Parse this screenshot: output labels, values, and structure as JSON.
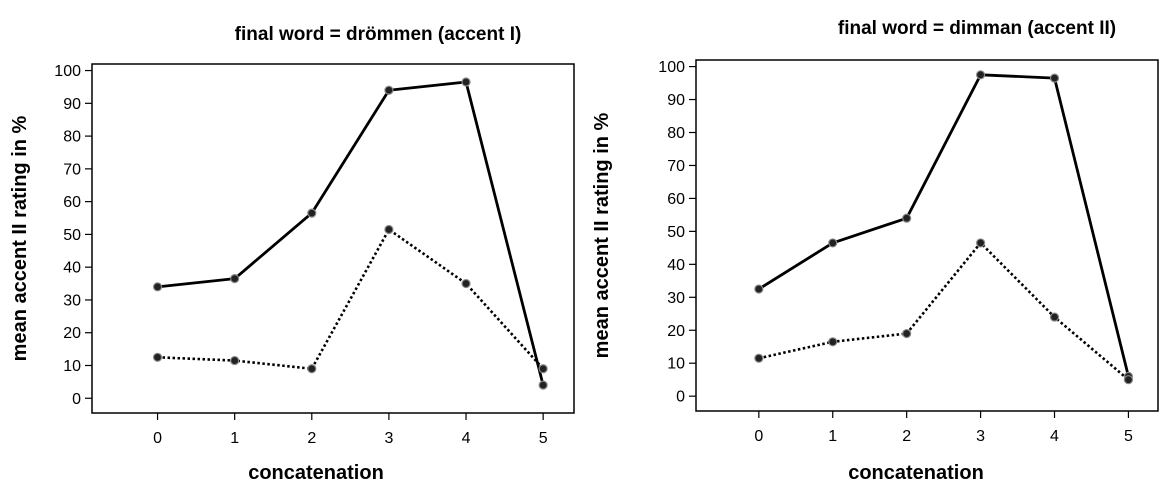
{
  "chart_data": [
    {
      "type": "line",
      "title": "final word = drömmen (accent I)",
      "xlabel": "concatenation",
      "ylabel": "mean accent II rating in %",
      "x": [
        0,
        1,
        2,
        3,
        4,
        5
      ],
      "xticks": [
        "0",
        "1",
        "2",
        "3",
        "4",
        "5"
      ],
      "yticks": [
        "0",
        "10",
        "20",
        "30",
        "40",
        "50",
        "60",
        "70",
        "80",
        "90",
        "100"
      ],
      "xlim": [
        -0.85,
        5.4
      ],
      "ylim": [
        -4.5,
        102
      ],
      "grid": false,
      "series": [
        {
          "style": "solid",
          "values": [
            34,
            36.5,
            56.5,
            94,
            96.5,
            4
          ]
        },
        {
          "style": "dotted",
          "values": [
            12.5,
            11.5,
            9,
            51.5,
            35,
            9
          ]
        }
      ]
    },
    {
      "type": "line",
      "title": "final word = dimman (accent II)",
      "xlabel": "concatenation",
      "ylabel": "mean accent II rating in %",
      "x": [
        0,
        1,
        2,
        3,
        4,
        5
      ],
      "xticks": [
        "0",
        "1",
        "2",
        "3",
        "4",
        "5"
      ],
      "yticks": [
        "0",
        "10",
        "20",
        "30",
        "40",
        "50",
        "60",
        "70",
        "80",
        "90",
        "100"
      ],
      "xlim": [
        -0.85,
        5.4
      ],
      "ylim": [
        -4.5,
        102
      ],
      "grid": false,
      "series": [
        {
          "style": "solid",
          "values": [
            32.5,
            46.5,
            54,
            97.5,
            96.5,
            6
          ]
        },
        {
          "style": "dotted",
          "values": [
            11.5,
            16.5,
            19,
            46.5,
            24,
            5
          ]
        }
      ]
    }
  ],
  "colors": {
    "line": "#000000",
    "marker_fill": "#222222",
    "marker_stroke": "#888888"
  }
}
